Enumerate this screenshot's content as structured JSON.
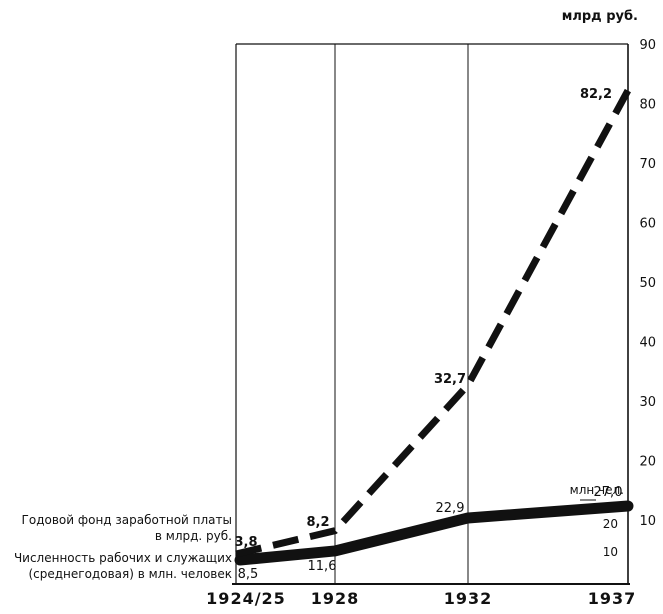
{
  "chart_data": {
    "type": "line",
    "x": [
      "1924/25",
      "1928",
      "1932",
      "1937"
    ],
    "right_axis": {
      "unit_label": "млрд руб.",
      "ticks": [
        10,
        20,
        30,
        40,
        50,
        60,
        70,
        80,
        90
      ],
      "ylim": [
        0,
        90
      ]
    },
    "left_axis_inner": {
      "unit_label": "млн.чел.",
      "ticks": [
        10,
        20
      ]
    },
    "series": [
      {
        "name": "Годовой фонд заработной платы в млрд. руб.",
        "name_lines": [
          "Годовой фонд заработной платы",
          "в млрд. руб."
        ],
        "values": [
          3.8,
          8.2,
          32.7,
          82.2
        ],
        "value_labels": [
          "3,8",
          "8,2",
          "32,7",
          "82,2"
        ],
        "style": "dashed",
        "color": "#111111"
      },
      {
        "name": "Численность рабочих и служащих (среднегодовая) в млн. человек",
        "name_lines": [
          "Численность рабочих и служащих",
          "(среднегодовая) в млн. человек"
        ],
        "values": [
          8.5,
          11.6,
          22.9,
          27.0
        ],
        "value_labels": [
          "8,5",
          "11,6",
          "22,9",
          "27,0"
        ],
        "style": "solid-thick",
        "color": "#111111"
      }
    ],
    "grid": "vertical-at-years"
  }
}
